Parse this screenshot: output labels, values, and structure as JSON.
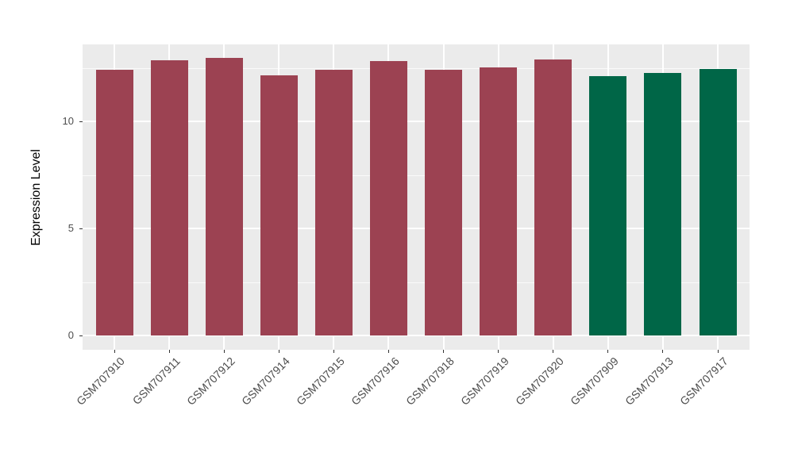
{
  "chart_data": {
    "type": "bar",
    "title": "",
    "xlabel": "",
    "ylabel": "Expression Level",
    "categories": [
      "GSM707910",
      "GSM707911",
      "GSM707912",
      "GSM707914",
      "GSM707915",
      "GSM707916",
      "GSM707918",
      "GSM707919",
      "GSM707920",
      "GSM707909",
      "GSM707913",
      "GSM707917"
    ],
    "values": [
      12.4,
      12.85,
      12.95,
      12.15,
      12.4,
      12.8,
      12.42,
      12.52,
      12.88,
      12.12,
      12.25,
      12.45
    ],
    "groups": [
      "maroon",
      "maroon",
      "maroon",
      "maroon",
      "maroon",
      "maroon",
      "maroon",
      "maroon",
      "maroon",
      "green",
      "green",
      "green"
    ],
    "colors": {
      "maroon": "#9c4252",
      "green": "#006647"
    },
    "yticks": [
      0,
      5,
      10
    ],
    "yticks_minor": [
      2.5,
      7.5,
      12.5
    ],
    "ylim": [
      0,
      13.6
    ],
    "grid": "on",
    "legend": "none",
    "x_label_rotation": 45,
    "panel_bg": "#ebebeb",
    "grid_color": "#ffffff",
    "axis_text_color": "#4d4d4d",
    "tick_color": "#333333"
  }
}
